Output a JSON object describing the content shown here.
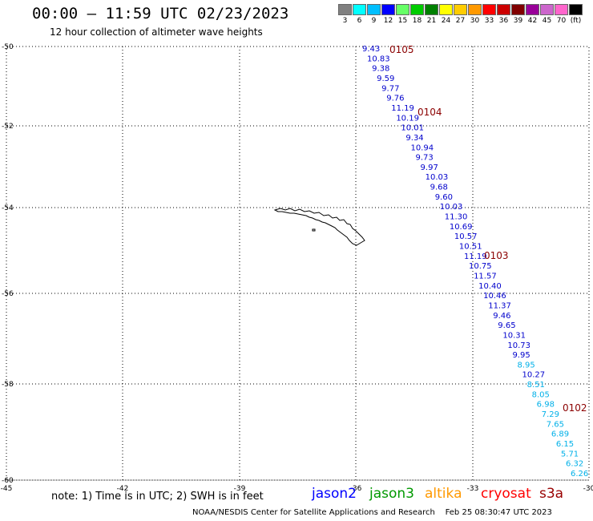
{
  "header": {
    "title": "00:00 – 11:59 UTC 02/23/2023",
    "subtitle": "12 hour collection of altimeter wave heights"
  },
  "legend_scale": {
    "labels": [
      "3",
      "6",
      "9",
      "12",
      "15",
      "18",
      "21",
      "24",
      "27",
      "30",
      "33",
      "36",
      "39",
      "42",
      "45",
      "70",
      "(ft)"
    ],
    "colors": [
      "#808080",
      "#00ffff",
      "#00bfff",
      "#0000ff",
      "#66ff66",
      "#00cc00",
      "#008000",
      "#ffff00",
      "#ffcc00",
      "#ff9900",
      "#ff0000",
      "#cc0000",
      "#800000",
      "#990099",
      "#cc66cc",
      "#ff66cc",
      "#000000"
    ]
  },
  "axes": {
    "lon_ticks": [
      -45,
      -42,
      -39,
      -36,
      -33,
      -30
    ],
    "lat_ticks": [
      -50,
      -52,
      -54,
      -56,
      -58,
      -60
    ],
    "lon_labels": [
      "-45",
      "-42",
      "-39",
      "-36",
      "-33",
      "-30"
    ],
    "lat_labels": [
      "-50",
      "-52",
      "-54",
      "-56",
      "-58",
      "-60"
    ]
  },
  "passes": [
    "0105",
    "0104",
    "0103",
    "0102"
  ],
  "track_values": [
    {
      "v": "9.43",
      "c": "#0000cc"
    },
    {
      "v": "10.83",
      "c": "#0000cc"
    },
    {
      "v": "9.38",
      "c": "#0000cc"
    },
    {
      "v": "9.59",
      "c": "#0000cc"
    },
    {
      "v": "9.77",
      "c": "#0000cc"
    },
    {
      "v": "9.76",
      "c": "#0000cc"
    },
    {
      "v": "11.19",
      "c": "#0000cc"
    },
    {
      "v": "10.19",
      "c": "#0000cc"
    },
    {
      "v": "10.01",
      "c": "#0000cc"
    },
    {
      "v": "9.34",
      "c": "#0000cc"
    },
    {
      "v": "10.94",
      "c": "#0000cc"
    },
    {
      "v": "9.73",
      "c": "#0000cc"
    },
    {
      "v": "9.97",
      "c": "#0000cc"
    },
    {
      "v": "10.03",
      "c": "#0000cc"
    },
    {
      "v": "9.68",
      "c": "#0000cc"
    },
    {
      "v": "9.60",
      "c": "#0000cc"
    },
    {
      "v": "10.03",
      "c": "#0000cc"
    },
    {
      "v": "11.30",
      "c": "#0000cc"
    },
    {
      "v": "10.69",
      "c": "#0000cc"
    },
    {
      "v": "10.57",
      "c": "#0000cc"
    },
    {
      "v": "10.51",
      "c": "#0000cc"
    },
    {
      "v": "11.19",
      "c": "#0000cc"
    },
    {
      "v": "10.75",
      "c": "#0000cc"
    },
    {
      "v": "11.57",
      "c": "#0000cc"
    },
    {
      "v": "10.40",
      "c": "#0000cc"
    },
    {
      "v": "10.46",
      "c": "#0000cc"
    },
    {
      "v": "11.37",
      "c": "#0000cc"
    },
    {
      "v": "9.46",
      "c": "#0000cc"
    },
    {
      "v": "9.65",
      "c": "#0000cc"
    },
    {
      "v": "10.31",
      "c": "#0000cc"
    },
    {
      "v": "10.73",
      "c": "#0000cc"
    },
    {
      "v": "9.95",
      "c": "#0000cc"
    },
    {
      "v": "8.95",
      "c": "#00b0e8"
    },
    {
      "v": "10.27",
      "c": "#0000cc"
    },
    {
      "v": "8.51",
      "c": "#00b0e8"
    },
    {
      "v": "8.05",
      "c": "#00b0e8"
    },
    {
      "v": "6.98",
      "c": "#00b0e8"
    },
    {
      "v": "7.29",
      "c": "#00b0e8"
    },
    {
      "v": "7.65",
      "c": "#00b0e8"
    },
    {
      "v": "6.89",
      "c": "#00b0e8"
    },
    {
      "v": "6.15",
      "c": "#00b0e8"
    },
    {
      "v": "5.71",
      "c": "#00b0e8"
    },
    {
      "v": "6.32",
      "c": "#00b0e8"
    },
    {
      "v": "6.26",
      "c": "#00b0e8"
    }
  ],
  "footer": {
    "note": "note: 1) Time is in UTC; 2) SWH is in feet",
    "satellites": [
      {
        "name": "jason2",
        "color": "#0000ff"
      },
      {
        "name": "jason3",
        "color": "#009900"
      },
      {
        "name": "altika",
        "color": "#ff9900"
      },
      {
        "name": "cryosat",
        "color": "#ff0000"
      },
      {
        "name": "s3a",
        "color": "#990000"
      }
    ],
    "credit": "NOAA/NESDIS Center for Satellite Applications and Research    Feb 25 08:30:47 UTC 2023"
  }
}
